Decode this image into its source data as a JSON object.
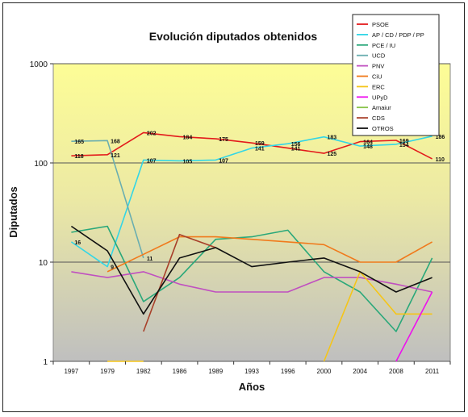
{
  "chart_data": {
    "type": "line",
    "title": "Evolución diputados obtenidos",
    "xlabel": "Años",
    "ylabel": "Diputados",
    "yscale": "log",
    "ylim": [
      1,
      1000
    ],
    "yticks": [
      "1",
      "10",
      "100",
      "1000"
    ],
    "categories": [
      "1997",
      "1979",
      "1982",
      "1986",
      "1989",
      "1993",
      "1996",
      "2000",
      "2004",
      "2008",
      "2011"
    ],
    "legend_position": "top-right",
    "series": [
      {
        "name": "PSOE",
        "color": "#e31a1c",
        "values": [
          118,
          121,
          202,
          184,
          175,
          159,
          141,
          125,
          164,
          169,
          110
        ],
        "labels": [
          "118",
          "121",
          "202",
          "184",
          "175",
          "159",
          "141",
          "125",
          "164",
          "169",
          "110"
        ]
      },
      {
        "name": "AP / CD / PDP / PP",
        "color": "#33d6e6",
        "values": [
          16,
          9,
          107,
          105,
          107,
          141,
          156,
          183,
          148,
          154,
          186
        ],
        "labels": [
          "16",
          "9",
          "107",
          "105",
          "107",
          "141",
          "156",
          "183",
          "148",
          "154",
          "186"
        ]
      },
      {
        "name": "PCE / IU",
        "color": "#2aa87a",
        "values": [
          20,
          23,
          4,
          7,
          17,
          18,
          21,
          8,
          5,
          2,
          11
        ],
        "labels": []
      },
      {
        "name": "UCD",
        "color": "#6aaeb0",
        "values": [
          165,
          168,
          11,
          null,
          null,
          null,
          null,
          null,
          null,
          null,
          null
        ],
        "labels": [
          "165",
          "168",
          "11"
        ]
      },
      {
        "name": "PNV",
        "color": "#c050c0",
        "values": [
          8,
          7,
          8,
          6,
          5,
          5,
          5,
          7,
          7,
          6,
          5
        ],
        "labels": []
      },
      {
        "name": "CiU",
        "color": "#f07a1c",
        "values": [
          null,
          8,
          12,
          18,
          18,
          17,
          16,
          15,
          10,
          10,
          16
        ],
        "labels": []
      },
      {
        "name": "ERC",
        "color": "#f5c518",
        "values": [
          null,
          1,
          1,
          null,
          null,
          null,
          null,
          1,
          8,
          3,
          3
        ],
        "labels": []
      },
      {
        "name": "UPyD",
        "color": "#ee10ee",
        "values": [
          null,
          null,
          null,
          null,
          null,
          null,
          null,
          null,
          null,
          1,
          5
        ],
        "labels": []
      },
      {
        "name": "Amaiur",
        "color": "#88c34a",
        "values": [
          null,
          null,
          null,
          null,
          null,
          null,
          null,
          null,
          null,
          null,
          7
        ],
        "labels": []
      },
      {
        "name": "CDS",
        "color": "#a8402a",
        "values": [
          null,
          null,
          2,
          19,
          14,
          null,
          null,
          null,
          null,
          null,
          null
        ],
        "labels": []
      },
      {
        "name": "OTROS",
        "color": "#111111",
        "values": [
          23,
          13,
          3,
          11,
          14,
          9,
          10,
          11,
          8,
          5,
          7
        ],
        "labels": []
      }
    ]
  }
}
